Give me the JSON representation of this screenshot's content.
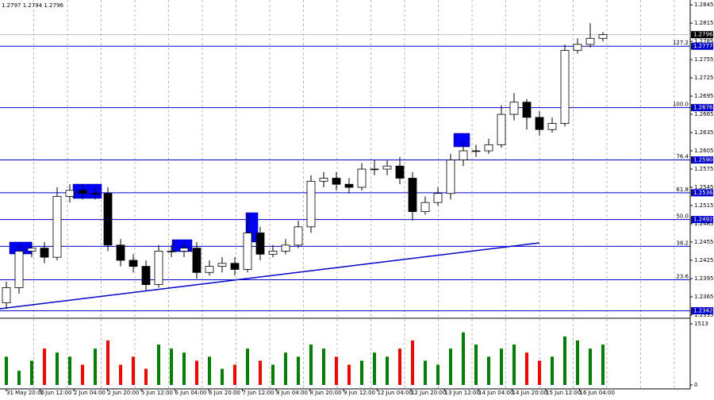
{
  "chart_data": {
    "type": "candlestick",
    "header": "1.2797 1.2794 1.2796",
    "ylim": [
      1.2331,
      1.2853
    ],
    "yticks": [
      1.2845,
      1.2815,
      1.2785,
      1.2755,
      1.2725,
      1.2695,
      1.2665,
      1.2635,
      1.2605,
      1.2575,
      1.2545,
      1.2515,
      1.2485,
      1.2455,
      1.2425,
      1.2395,
      1.2365,
      1.2335
    ],
    "time_labels": [
      "31 May 20:00",
      "1 Jun 12:00",
      "2 Jun 04:00",
      "2 Jun 20:00",
      "5 Jun 12:00",
      "6 Jun 04:00",
      "6 Jun 20:00",
      "7 Jun 12:00",
      "8 Jun 04:00",
      "8 Jun 20:00",
      "9 Jun 12:00",
      "12 Jun 04:00",
      "12 Jun 20:00",
      "13 Jun 12:00",
      "14 Jun 04:00",
      "14 Jun 20:00",
      "15 Jun 12:00",
      "16 Jun 04:00"
    ],
    "up_color": "#008000",
    "down_color": "#ff0000",
    "level_color": "#0000cd",
    "open": [
      1.2355,
      1.238,
      1.244,
      1.2445,
      1.243,
      1.253,
      1.254,
      1.2535,
      1.2535,
      1.245,
      1.2425,
      1.2415,
      1.2385,
      1.244,
      1.244,
      1.2445,
      1.2405,
      1.2415,
      1.242,
      1.241,
      1.247,
      1.2435,
      1.244,
      1.245,
      1.248,
      1.2555,
      1.256,
      1.255,
      1.2545,
      1.2575,
      1.2575,
      1.258,
      1.256,
      1.2505,
      1.252,
      1.2535,
      1.259,
      1.2605,
      1.2605,
      1.2615,
      1.2665,
      1.2685,
      1.266,
      1.264,
      1.265,
      1.277,
      1.278,
      1.279
    ],
    "high": [
      1.239,
      1.245,
      1.2455,
      1.2455,
      1.2545,
      1.255,
      1.255,
      1.2545,
      1.2545,
      1.246,
      1.2435,
      1.2425,
      1.245,
      1.245,
      1.2455,
      1.2455,
      1.2425,
      1.243,
      1.243,
      1.25,
      1.248,
      1.245,
      1.246,
      1.249,
      1.2565,
      1.257,
      1.257,
      1.256,
      1.2585,
      1.259,
      1.259,
      1.2595,
      1.257,
      1.253,
      1.2545,
      1.26,
      1.262,
      1.2615,
      1.2625,
      1.268,
      1.27,
      1.269,
      1.267,
      1.266,
      1.278,
      1.279,
      1.2815,
      1.28
    ],
    "low": [
      1.2345,
      1.237,
      1.243,
      1.242,
      1.2425,
      1.252,
      1.2525,
      1.2525,
      1.244,
      1.2415,
      1.2405,
      1.2375,
      1.238,
      1.243,
      1.243,
      1.2395,
      1.24,
      1.2405,
      1.24,
      1.2405,
      1.2425,
      1.243,
      1.2435,
      1.2445,
      1.247,
      1.2545,
      1.254,
      1.2535,
      1.254,
      1.2565,
      1.2565,
      1.255,
      1.249,
      1.25,
      1.2515,
      1.2525,
      1.258,
      1.2595,
      1.26,
      1.261,
      1.2655,
      1.264,
      1.263,
      1.2635,
      1.2645,
      1.2765,
      1.2775,
      1.2785
    ],
    "close": [
      1.238,
      1.244,
      1.2445,
      1.243,
      1.253,
      1.254,
      1.2535,
      1.2535,
      1.245,
      1.2425,
      1.2415,
      1.2385,
      1.244,
      1.244,
      1.2445,
      1.2405,
      1.2415,
      1.242,
      1.241,
      1.247,
      1.2435,
      1.244,
      1.245,
      1.248,
      1.2555,
      1.256,
      1.255,
      1.2545,
      1.2575,
      1.2575,
      1.258,
      1.256,
      1.2505,
      1.252,
      1.2535,
      1.259,
      1.2605,
      1.2605,
      1.2615,
      1.2665,
      1.2685,
      1.266,
      1.264,
      1.265,
      1.277,
      1.278,
      1.279,
      1.2796
    ],
    "current_price": 1.2796,
    "levels": [
      {
        "name": "127.2",
        "value": 1.2777,
        "tag": true
      },
      {
        "name": "100.0",
        "value": 1.2676,
        "tag": true
      },
      {
        "name": "76.4",
        "value": {
          "value": 1.259,
          "label": "1.2590"
        },
        "tag": true
      },
      {
        "name": "61.8",
        "value": 1.2536,
        "tag": true
      },
      {
        "name": "50.0",
        "value": 1.2492,
        "tag": true
      },
      {
        "name": "38.2",
        "value": 1.2448,
        "tag": false
      },
      {
        "name": "23.6",
        "value": 1.2393,
        "tag": false
      },
      {
        "value": 1.2342,
        "tag": true
      }
    ],
    "volume": {
      "ylim": [
        0,
        1513
      ],
      "yticks": [
        1513,
        0
      ],
      "values": [
        700,
        350,
        600,
        900,
        800,
        700,
        500,
        900,
        1100,
        500,
        700,
        400,
        1000,
        900,
        800,
        600,
        700,
        400,
        500,
        900,
        600,
        500,
        800,
        700,
        1000,
        900,
        700,
        500,
        600,
        800,
        700,
        900,
        1100,
        600,
        500,
        900,
        1300,
        1000,
        700,
        900,
        1000,
        800,
        600,
        700,
        1200,
        1100,
        900,
        1000
      ]
    }
  }
}
